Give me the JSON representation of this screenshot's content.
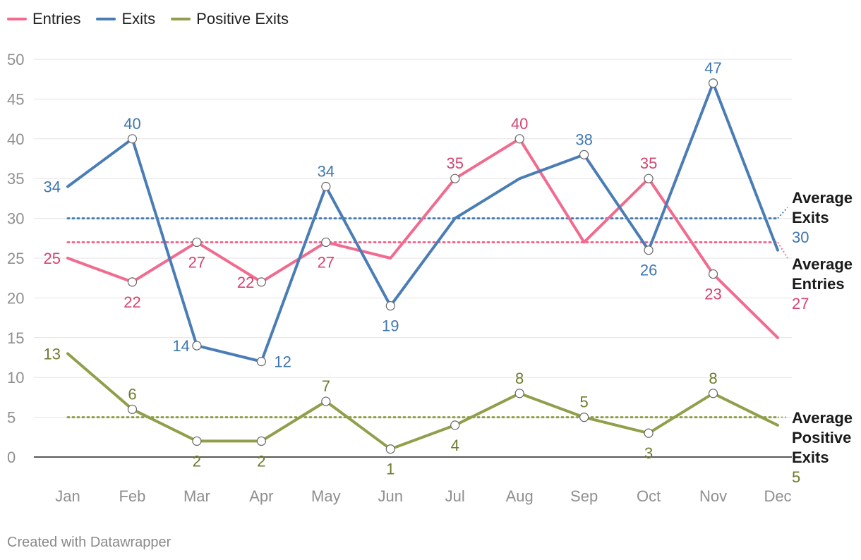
{
  "chart_data": {
    "type": "line",
    "categories": [
      "Jan",
      "Feb",
      "Mar",
      "Apr",
      "May",
      "Jun",
      "Jul",
      "Aug",
      "Sep",
      "Oct",
      "Nov",
      "Dec"
    ],
    "ylim": [
      0,
      50
    ],
    "yticks": [
      0,
      5,
      10,
      15,
      20,
      25,
      30,
      35,
      40,
      45,
      50
    ],
    "grid": true,
    "legend_position": "top-left",
    "series": [
      {
        "name": "Entries",
        "color": "#f06b8f",
        "label_color": "#d44570",
        "values": [
          25,
          22,
          27,
          22,
          27,
          25,
          35,
          40,
          27,
          35,
          23,
          15
        ],
        "labels": [
          "25",
          "22",
          "27",
          "22",
          "27",
          "",
          "35",
          "40",
          "",
          "35",
          "23",
          ""
        ]
      },
      {
        "name": "Exits",
        "color": "#4a7db5",
        "label_color": "#3f77b0",
        "values": [
          34,
          40,
          14,
          12,
          34,
          19,
          30,
          35,
          38,
          26,
          47,
          26
        ],
        "labels": [
          "34",
          "40",
          "14",
          "12",
          "34",
          "19",
          "",
          "",
          "38",
          "26",
          "47",
          ""
        ]
      },
      {
        "name": "Positive Exits",
        "color": "#8f9f4a",
        "label_color": "#6e7a2d",
        "values": [
          13,
          6,
          2,
          2,
          7,
          1,
          4,
          8,
          5,
          3,
          8,
          4
        ],
        "labels": [
          "13",
          "6",
          "2",
          "2",
          "7",
          "1",
          "4",
          "8",
          "5",
          "3",
          "8",
          ""
        ]
      }
    ],
    "averages": [
      {
        "series": "Exits",
        "value": 30,
        "label_line1": "Average",
        "label_line2": "Exits",
        "label_line3": "",
        "value_label": "30"
      },
      {
        "series": "Entries",
        "value": 27,
        "label_line1": "Average",
        "label_line2": "Entries",
        "label_line3": "",
        "value_label": "27"
      },
      {
        "series": "Positive Exits",
        "value": 5,
        "label_line1": "Average",
        "label_line2": "Positive",
        "label_line3": "Exits",
        "value_label": "5"
      }
    ]
  },
  "footer": "Created with Datawrapper"
}
